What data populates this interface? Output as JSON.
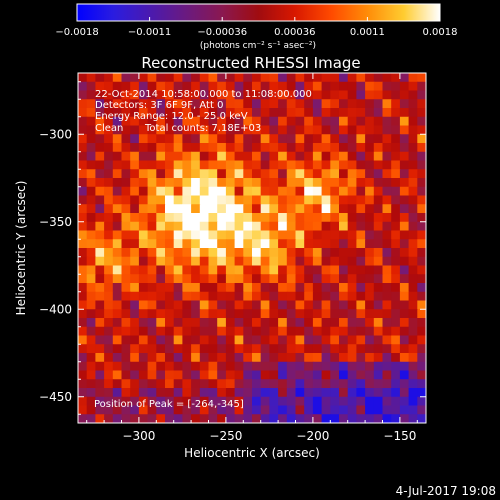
{
  "chart_data": {
    "type": "heatmap",
    "title": "Reconstructed RHESSI Image",
    "xlabel": "Heliocentric X (arcsec)",
    "ylabel": "Heliocentric Y (arcsec)",
    "xlim": [
      -335,
      -135
    ],
    "ylim": [
      -465,
      -265
    ],
    "x_ticks": [
      -300,
      -250,
      -200,
      -150
    ],
    "y_ticks": [
      -300,
      -350,
      -400,
      -450
    ],
    "x_tick_labels": [
      "−300",
      "−250",
      "−200",
      "−150"
    ],
    "y_tick_labels": [
      "−300",
      "−350",
      "−400",
      "−450"
    ],
    "colorbar": {
      "range": [
        -0.0018,
        0.0018
      ],
      "tick_labels": [
        "−0.0018",
        "−0.0011",
        "−0.00036",
        "0.00036",
        "0.0011",
        "0.0018"
      ],
      "unit_label": "(photons cm⁻² s⁻¹ asec⁻²)",
      "colormap": [
        "#0000ff",
        "#3a1cc8",
        "#5a1a98",
        "#7a1a70",
        "#9a1838",
        "#b00a0a",
        "#e02000",
        "#ff5a00",
        "#ff9a10",
        "#ffd040",
        "#ffffff"
      ]
    },
    "annotations": {
      "time": "22-Oct-2014 10:58:00.000 to 11:08:00.000",
      "detectors": "Detectors: 3F 6F 9F, Att 0",
      "energy": "Energy Range: 12.0 - 25.0 keV",
      "clean": "Clean",
      "counts": "Total counts: 7.18E+03",
      "peak": "Position of Peak = [-264,-345]"
    },
    "peak": {
      "x": -264,
      "y": -345
    },
    "secondary_sources": [
      {
        "x": -197,
        "y": -333
      },
      {
        "x": -226,
        "y": -363
      },
      {
        "x": -320,
        "y": -372
      }
    ]
  },
  "footer": {
    "date": "4-Jul-2017 19:08"
  }
}
